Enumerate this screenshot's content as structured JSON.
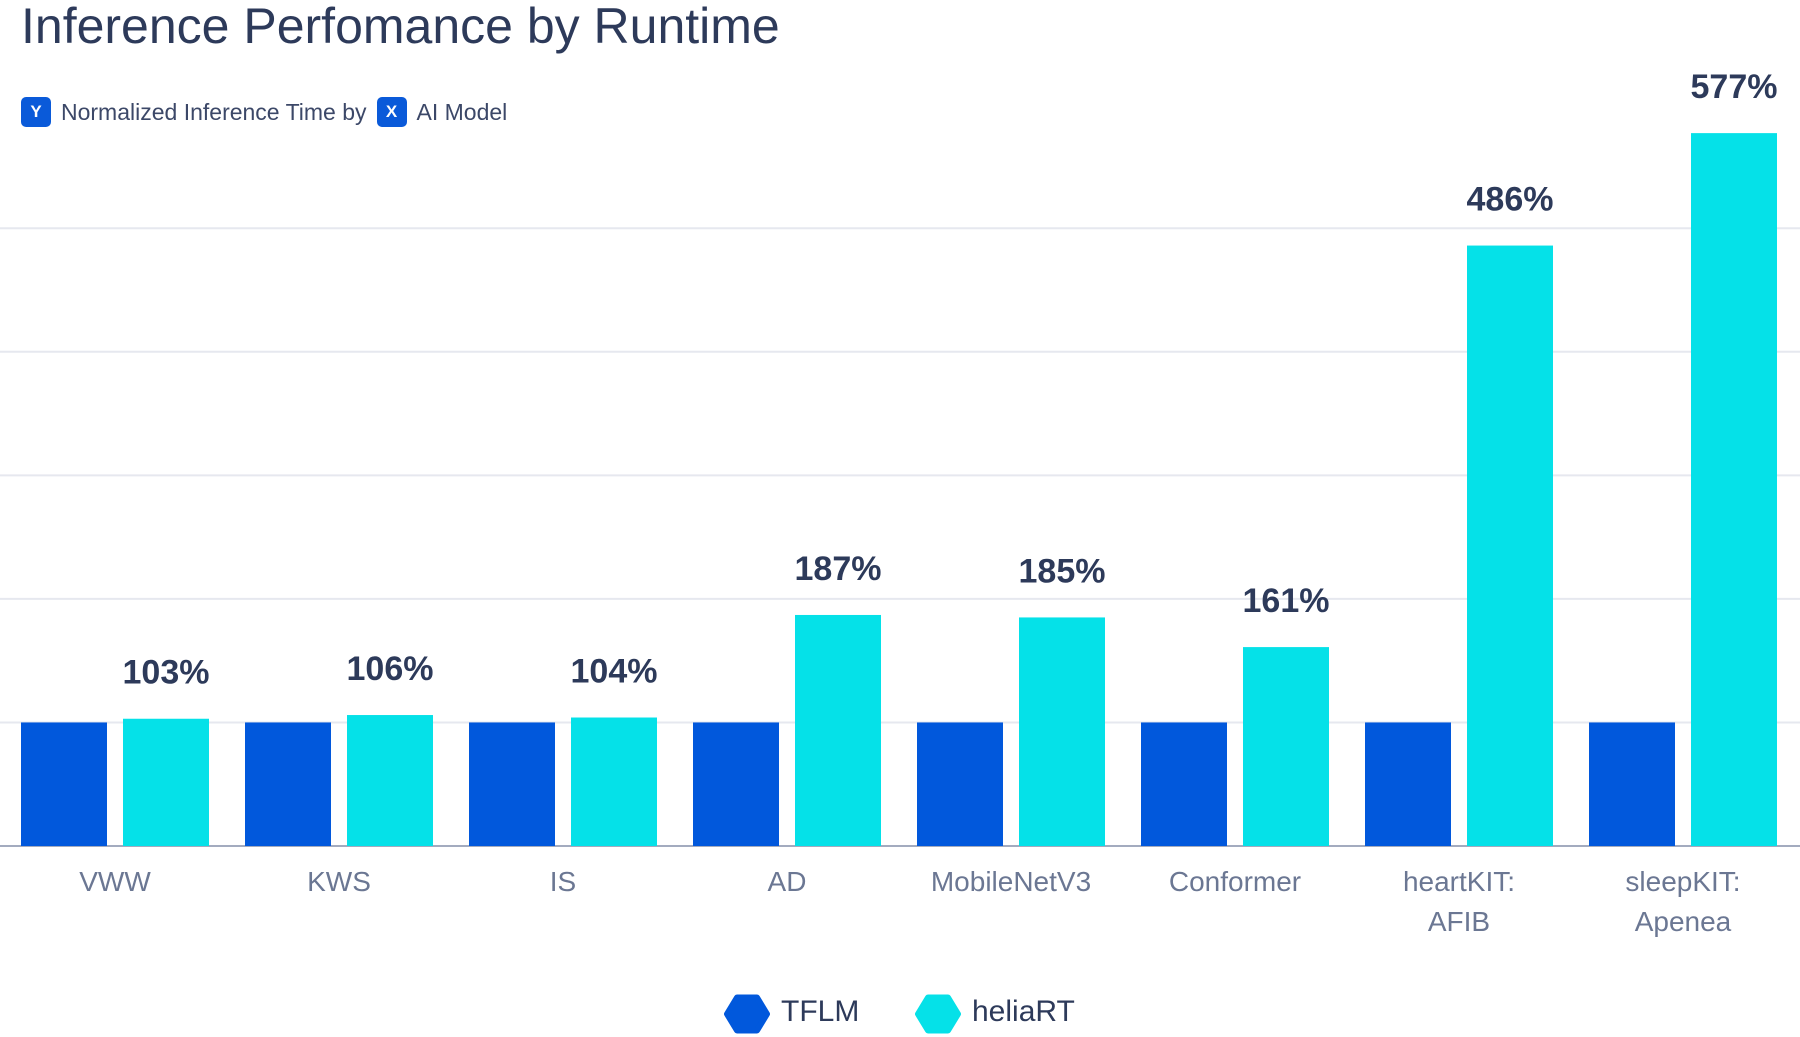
{
  "chart_data": {
    "type": "bar",
    "title": "Inference Perfomance by Runtime",
    "axis_caption": {
      "y_badge": "Y",
      "y_label": "Normalized Inference Time by",
      "x_badge": "X",
      "x_label": "AI Model"
    },
    "categories": [
      "VWW",
      "KWS",
      "IS",
      "AD",
      "MobileNetV3",
      "Conformer",
      "heartKIT:\nAFIB",
      "sleepKIT:\nApenea"
    ],
    "series": [
      {
        "name": "TFLM",
        "color": "#0158dc",
        "values": [
          100,
          100,
          100,
          100,
          100,
          100,
          100,
          100
        ]
      },
      {
        "name": "heliaRT",
        "color": "#05e1e8",
        "values": [
          103,
          106,
          104,
          187,
          185,
          161,
          486,
          577
        ],
        "value_labels": [
          "103%",
          "106%",
          "104%",
          "187%",
          "185%",
          "161%",
          "486%",
          "577%"
        ]
      }
    ],
    "ylim": [
      0,
      620
    ],
    "yticks": [
      0,
      100,
      200,
      300,
      400,
      500
    ],
    "grid": true,
    "legend": "bottom"
  }
}
